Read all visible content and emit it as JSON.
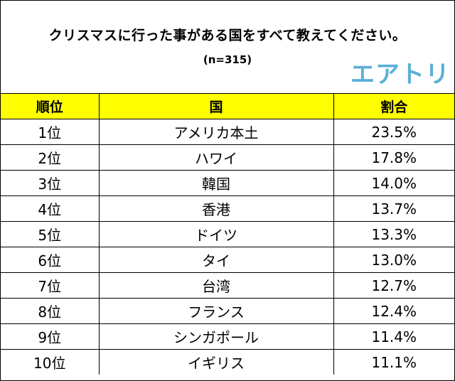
{
  "header": {
    "title": "クリスマスに行った事がある国をすべて教えてください。",
    "sample": "(n=315)",
    "logo": "エアトリ"
  },
  "colors": {
    "header_row_background": "#ffff00",
    "logo": "#5ab0d6"
  },
  "chart_data": {
    "type": "table",
    "columns": [
      "順位",
      "国",
      "割合"
    ],
    "rows": [
      [
        "1位",
        "アメリカ本土",
        "23.5%"
      ],
      [
        "2位",
        "ハワイ",
        "17.8%"
      ],
      [
        "3位",
        "韓国",
        "14.0%"
      ],
      [
        "4位",
        "香港",
        "13.7%"
      ],
      [
        "5位",
        "ドイツ",
        "13.3%"
      ],
      [
        "6位",
        "タイ",
        "13.0%"
      ],
      [
        "7位",
        "台湾",
        "12.7%"
      ],
      [
        "8位",
        "フランス",
        "12.4%"
      ],
      [
        "9位",
        "シンガポール",
        "11.4%"
      ],
      [
        "10位",
        "イギリス",
        "11.1%"
      ]
    ]
  }
}
